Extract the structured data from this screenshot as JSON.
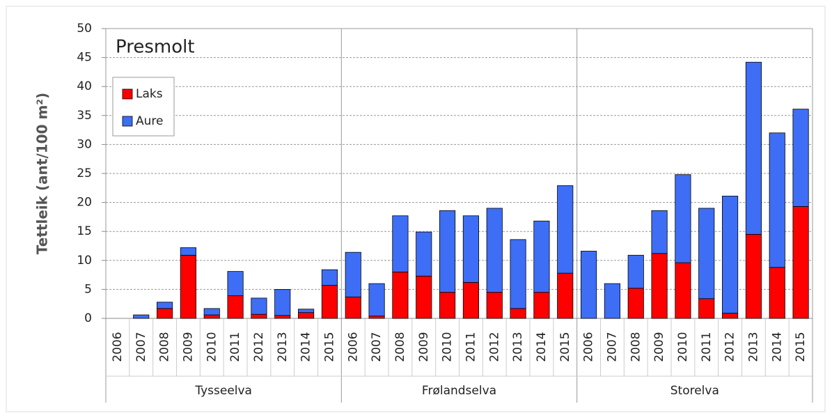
{
  "chart_data": {
    "type": "stacked-bar",
    "title": "Presmolt",
    "y_label": "Tettleik (ant/100 m²)",
    "groups": [
      "Tysseelva",
      "Frølandselva",
      "Storelva"
    ],
    "categories": [
      "2006",
      "2007",
      "2008",
      "2009",
      "2010",
      "2011",
      "2012",
      "2013",
      "2014",
      "2015",
      "2006",
      "2007",
      "2008",
      "2009",
      "2010",
      "2011",
      "2012",
      "2013",
      "2014",
      "2015",
      "2006",
      "2007",
      "2008",
      "2009",
      "2010",
      "2011",
      "2012",
      "2013",
      "2014",
      "2015"
    ],
    "series": [
      {
        "name": "Laks",
        "color": "#ff0000",
        "values": [
          0,
          0,
          1.7,
          10.9,
          0.6,
          3.9,
          0.7,
          0.5,
          1.0,
          5.7,
          3.7,
          0.4,
          8.0,
          7.3,
          4.5,
          6.2,
          4.5,
          1.7,
          4.5,
          7.8,
          0,
          0,
          5.2,
          11.2,
          9.6,
          3.4,
          0.9,
          14.5,
          8.8,
          19.3
        ]
      },
      {
        "name": "Aure",
        "color": "#3d6ef5",
        "values": [
          0,
          0.6,
          1.1,
          1.3,
          1.1,
          4.2,
          2.8,
          4.5,
          0.6,
          2.7,
          7.7,
          5.6,
          9.7,
          7.6,
          14.1,
          11.5,
          14.5,
          11.9,
          12.3,
          15.1,
          11.6,
          6.0,
          5.7,
          7.4,
          15.2,
          15.6,
          20.2,
          29.7,
          23.2,
          16.8
        ]
      }
    ],
    "ylim": [
      0,
      50
    ],
    "yticks": [
      0,
      5,
      10,
      15,
      20,
      25,
      30,
      35,
      40,
      45,
      50
    ],
    "grid": true,
    "legend": "left"
  }
}
